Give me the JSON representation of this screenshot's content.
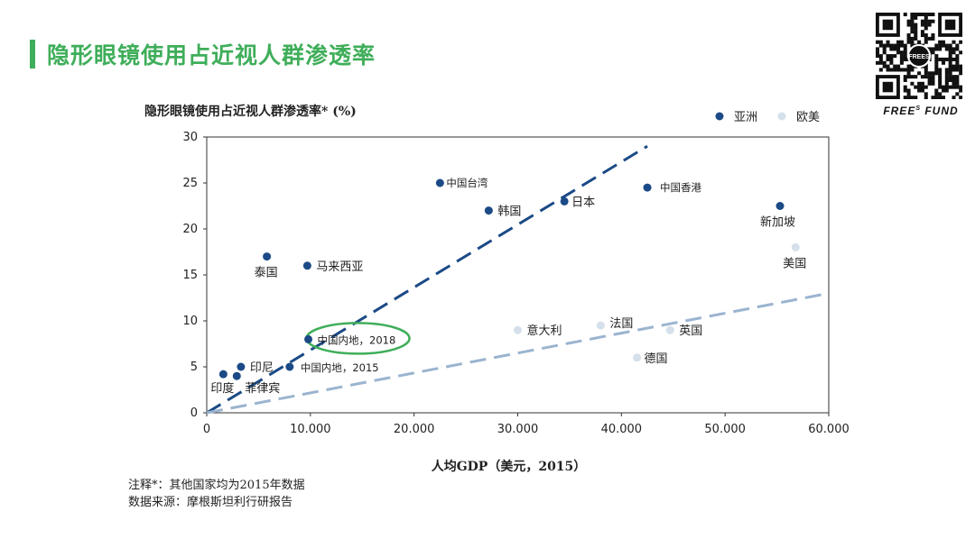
{
  "slide": {
    "title": "隐形眼镜使用占近视人群渗透率",
    "brand": "FREE",
    "brand_sup": "S",
    "brand_tail": " FUND",
    "qr_center_label": "FREES"
  },
  "footnotes": {
    "note": "注释*：其他国家均为2015年数据",
    "source": "数据来源：摩根斯坦利行研报告"
  },
  "colors": {
    "accent": "#3fae5a",
    "asia": "#1b4a86",
    "euro_us": "#d5e0ea",
    "trend_asia": "#1b4a86",
    "trend_euro_us": "#9bb4cf",
    "highlight": "#3fae5a"
  },
  "chart_data": {
    "type": "scatter",
    "title": "隐形眼镜使用占近视人群渗透率* (%)",
    "xlabel": "人均GDP（美元，2015）",
    "ylabel": "",
    "xlim": [
      0,
      60000
    ],
    "ylim": [
      0,
      30
    ],
    "xticks": [
      "0",
      "10.000",
      "20.000",
      "30.000",
      "40.000",
      "50.000",
      "60.000"
    ],
    "xtick_values": [
      0,
      10000,
      20000,
      30000,
      40000,
      50000,
      60000
    ],
    "yticks": [
      "0",
      "5",
      "10",
      "15",
      "20",
      "25",
      "30"
    ],
    "ytick_values": [
      0,
      5,
      10,
      15,
      20,
      25,
      30
    ],
    "legend_position": "top-right",
    "series": [
      {
        "name": "亚洲",
        "points": [
          {
            "label": "中国台湾",
            "x": 22500,
            "y": 25
          },
          {
            "label": "中国香港",
            "x": 42500,
            "y": 24.5
          },
          {
            "label": "韩国",
            "x": 27200,
            "y": 22
          },
          {
            "label": "日本",
            "x": 34500,
            "y": 23
          },
          {
            "label": "新加坡",
            "x": 55300,
            "y": 22.5
          },
          {
            "label": "泰国",
            "x": 5800,
            "y": 17
          },
          {
            "label": "马来西亚",
            "x": 9700,
            "y": 16
          },
          {
            "label": "中国内地，2018",
            "x": 9800,
            "y": 8
          },
          {
            "label": "中国内地，2015",
            "x": 8000,
            "y": 5
          },
          {
            "label": "印尼",
            "x": 3300,
            "y": 5
          },
          {
            "label": "印度",
            "x": 1600,
            "y": 4.2
          },
          {
            "label": "菲律宾",
            "x": 2900,
            "y": 4
          }
        ]
      },
      {
        "name": "欧美",
        "points": [
          {
            "label": "美国",
            "x": 56800,
            "y": 18
          },
          {
            "label": "意大利",
            "x": 30000,
            "y": 9
          },
          {
            "label": "法国",
            "x": 38000,
            "y": 9.5
          },
          {
            "label": "英国",
            "x": 44700,
            "y": 9
          },
          {
            "label": "德国",
            "x": 41500,
            "y": 6
          }
        ]
      }
    ],
    "trendlines": [
      {
        "series": "亚洲",
        "from": [
          0,
          0
        ],
        "to": [
          42500,
          29
        ]
      },
      {
        "series": "欧美",
        "from": [
          0,
          0
        ],
        "to": [
          60000,
          13
        ]
      }
    ],
    "highlight": "中国内地，2018"
  }
}
